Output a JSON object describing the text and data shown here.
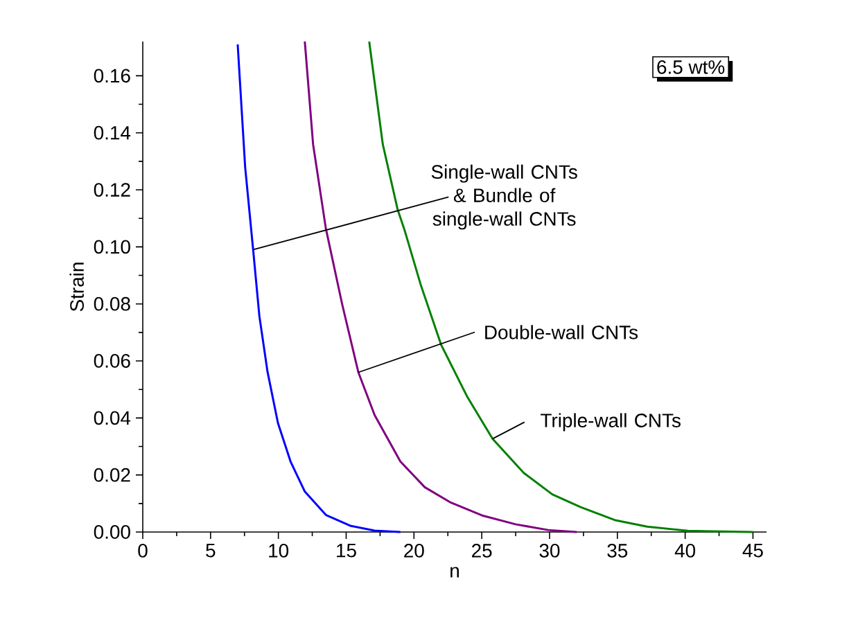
{
  "chart_data": {
    "type": "line",
    "xlabel": "n",
    "ylabel": "Strain",
    "xlim": [
      0,
      46
    ],
    "ylim": [
      0,
      0.172
    ],
    "xticks": [
      0,
      5,
      10,
      15,
      20,
      25,
      30,
      35,
      40,
      45
    ],
    "yticks": [
      {
        "value": 0,
        "label": "0.00"
      },
      {
        "value": 0.02,
        "label": "0.02"
      },
      {
        "value": 0.04,
        "label": "0.04"
      },
      {
        "value": 0.06,
        "label": "0.06"
      },
      {
        "value": 0.08,
        "label": "0.08"
      },
      {
        "value": 0.1,
        "label": "0.10"
      },
      {
        "value": 0.12,
        "label": "0.12"
      },
      {
        "value": 0.14,
        "label": "0.14"
      },
      {
        "value": 0.16,
        "label": "0.16"
      }
    ],
    "grid": false,
    "legend": false,
    "marker": "none",
    "line_style": "solid",
    "series": [
      {
        "color": "#0000ff",
        "x": [
          7.0,
          7.55,
          8.14,
          8.6,
          9.2,
          9.97,
          10.9,
          11.95,
          13.5,
          15.3,
          17.1,
          19.0
        ],
        "values": [
          0.171,
          0.128,
          0.099,
          0.0757,
          0.0562,
          0.0382,
          0.0247,
          0.0142,
          0.006,
          0.0022,
          0.0005,
          0
        ]
      },
      {
        "color": "#800080",
        "x": [
          11.95,
          12.56,
          13.5,
          14.7,
          15.9,
          17.1,
          19.0,
          20.8,
          22.65,
          25.1,
          27.5,
          29.9,
          32.0
        ],
        "values": [
          0.172,
          0.136,
          0.1065,
          0.08,
          0.056,
          0.041,
          0.0247,
          0.0157,
          0.0105,
          0.0057,
          0.0027,
          0.0007,
          0
        ]
      },
      {
        "color": "#008000",
        "x": [
          16.7,
          17.7,
          18.8,
          19.3,
          20.5,
          22.0,
          23.9,
          25.8,
          28.1,
          30.2,
          32.3,
          34.8,
          37.2,
          40.2,
          45.0
        ],
        "values": [
          0.172,
          0.136,
          0.113,
          0.106,
          0.0867,
          0.0657,
          0.0477,
          0.0327,
          0.0207,
          0.0132,
          0.0087,
          0.0042,
          0.0019,
          0.0004,
          0
        ]
      }
    ],
    "annotations": [
      "6.5 wt%",
      {
        "text": "Single-wall CNTs & Bundle of single-wall CNTs",
        "x": 8.14,
        "y": 0.099
      },
      {
        "text": "Double-wall CNTs",
        "x": 15.9,
        "y": 0.056
      },
      {
        "text": "Triple-wall CNTs",
        "x": 25.8,
        "y": 0.0327
      }
    ]
  }
}
